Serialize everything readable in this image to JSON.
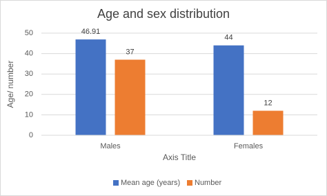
{
  "chart_data": {
    "type": "bar",
    "title": "Age and sex distribution",
    "y_label": "Age/ number",
    "x_label": "Axis Title",
    "categories": [
      "Males",
      "Females"
    ],
    "series": [
      {
        "name": "Mean age (years)",
        "color": "#4472c4",
        "values": [
          46.91,
          44
        ]
      },
      {
        "name": "Number",
        "color": "#ed7d31",
        "values": [
          37,
          12
        ]
      }
    ],
    "ylim": [
      0,
      50
    ],
    "yticks": [
      0,
      10,
      20,
      30,
      40,
      50
    ],
    "grid": true,
    "legend": "bottom"
  }
}
